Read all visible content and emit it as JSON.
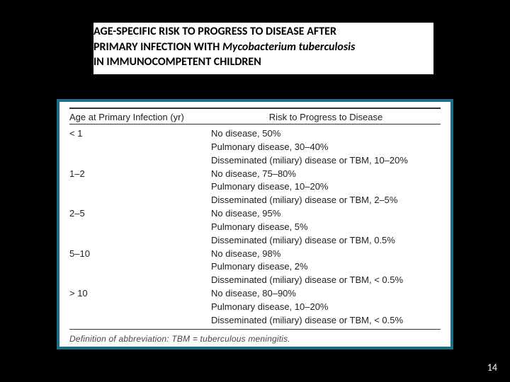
{
  "slide": {
    "title_line1": "AGE-SPECIFIC RISK TO PROGRESS TO DISEASE AFTER",
    "title_line2_prefix": "PRIMARY INFECTION WITH ",
    "title_line2_italic": "Mycobacterium tuberculosis",
    "title_line3": "IN IMMUNOCOMPETENT CHILDREN",
    "page_number": "14"
  },
  "table": {
    "header_age": "Age at Primary Infection (yr)",
    "header_risk": "Risk to Progress to Disease",
    "rows": [
      {
        "age": "< 1",
        "risk": "No disease, 50%"
      },
      {
        "age": "",
        "risk": "Pulmonary disease, 30–40%"
      },
      {
        "age": "",
        "risk": "Disseminated (miliary) disease or TBM, 10–20%"
      },
      {
        "age": "1–2",
        "risk": "No disease, 75–80%"
      },
      {
        "age": "",
        "risk": "Pulmonary disease, 10–20%"
      },
      {
        "age": "",
        "risk": "Disseminated (miliary) disease or TBM, 2–5%"
      },
      {
        "age": "2–5",
        "risk": "No disease, 95%"
      },
      {
        "age": "",
        "risk": "Pulmonary disease, 5%"
      },
      {
        "age": "",
        "risk": "Disseminated (miliary) disease or TBM, 0.5%"
      },
      {
        "age": "5–10",
        "risk": "No disease, 98%"
      },
      {
        "age": "",
        "risk": "Pulmonary disease, 2%"
      },
      {
        "age": "",
        "risk": "Disseminated (miliary) disease or TBM, < 0.5%"
      },
      {
        "age": "> 10",
        "risk": "No disease, 80–90%"
      },
      {
        "age": "",
        "risk": "Pulmonary disease, 10–20%"
      },
      {
        "age": "",
        "risk": "Disseminated (miliary) disease or TBM, < 0.5%"
      }
    ],
    "footnote": "Definition of abbreviation: TBM = tuberculous meningitis."
  },
  "colors": {
    "background": "#000000",
    "table_border": "#1f6b88",
    "text": "#222222"
  }
}
